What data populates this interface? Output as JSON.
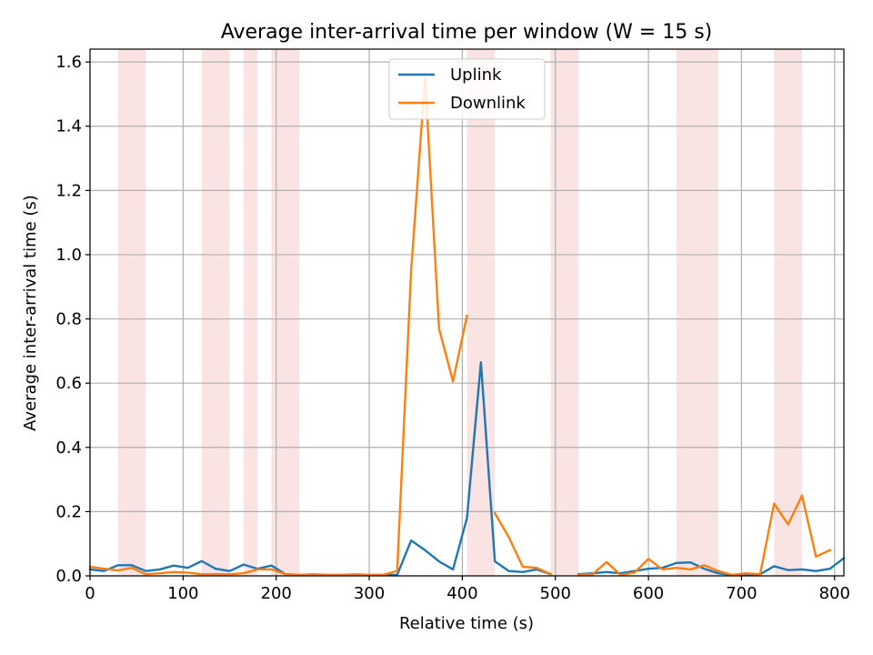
{
  "chart_data": {
    "type": "line",
    "title": "Average inter-arrival time per window (W = 15 s)",
    "xlabel": "Relative time (s)",
    "ylabel": "Average inter-arrival time (s)",
    "xlim": [
      0,
      810
    ],
    "ylim": [
      0,
      1.64
    ],
    "xticks": [
      0,
      100,
      200,
      300,
      400,
      500,
      600,
      700,
      800
    ],
    "yticks": [
      0.0,
      0.2,
      0.4,
      0.6,
      0.8,
      1.0,
      1.2,
      1.4,
      1.6
    ],
    "xtick_labels": [
      "0",
      "100",
      "200",
      "300",
      "400",
      "500",
      "600",
      "700",
      "800"
    ],
    "ytick_labels": [
      "0.0",
      "0.2",
      "0.4",
      "0.6",
      "0.8",
      "1.0",
      "1.2",
      "1.4",
      "1.6"
    ],
    "grid": true,
    "legend_position": "top-center",
    "shaded_spans": [
      [
        30,
        60
      ],
      [
        120,
        150
      ],
      [
        165,
        180
      ],
      [
        195,
        225
      ],
      [
        405,
        435
      ],
      [
        495,
        525
      ],
      [
        630,
        675
      ],
      [
        735,
        765
      ]
    ],
    "shade_color": "#f6d0d0",
    "series": [
      {
        "name": "Uplink",
        "color": "#1f77b4",
        "segments": [
          [
            [
              0,
              0.02
            ],
            [
              15,
              0.015
            ],
            [
              30,
              0.033
            ],
            [
              45,
              0.033
            ],
            [
              60,
              0.015
            ],
            [
              75,
              0.02
            ],
            [
              90,
              0.032
            ],
            [
              105,
              0.025
            ],
            [
              120,
              0.046
            ],
            [
              135,
              0.022
            ],
            [
              150,
              0.015
            ],
            [
              165,
              0.035
            ],
            [
              180,
              0.022
            ],
            [
              195,
              0.032
            ],
            [
              210,
              0.005
            ],
            [
              225,
              0.003
            ],
            [
              240,
              0.003
            ],
            [
              255,
              0.003
            ],
            [
              270,
              0.003
            ],
            [
              285,
              0.003
            ],
            [
              300,
              0.003
            ],
            [
              315,
              0.003
            ],
            [
              330,
              0.003
            ],
            [
              345,
              0.11
            ],
            [
              360,
              0.08
            ],
            [
              375,
              0.045
            ],
            [
              390,
              0.02
            ],
            [
              405,
              0.18
            ],
            [
              420,
              0.665
            ],
            [
              435,
              0.045
            ],
            [
              450,
              0.015
            ],
            [
              465,
              0.012
            ],
            [
              480,
              0.02
            ],
            [
              495,
              0.005
            ]
          ],
          [
            [
              525,
              0.005
            ],
            [
              540,
              0.008
            ],
            [
              555,
              0.012
            ],
            [
              570,
              0.008
            ],
            [
              585,
              0.015
            ],
            [
              600,
              0.022
            ],
            [
              615,
              0.025
            ],
            [
              630,
              0.04
            ],
            [
              645,
              0.042
            ],
            [
              660,
              0.022
            ],
            [
              675,
              0.008
            ],
            [
              690,
              0.003
            ],
            [
              705,
              0.003
            ],
            [
              720,
              0.005
            ],
            [
              735,
              0.03
            ],
            [
              750,
              0.018
            ],
            [
              765,
              0.02
            ],
            [
              780,
              0.015
            ],
            [
              795,
              0.022
            ],
            [
              810,
              0.055
            ]
          ]
        ]
      },
      {
        "name": "Downlink",
        "color": "#ff7f0e",
        "segments": [
          [
            [
              0,
              0.028
            ],
            [
              15,
              0.022
            ],
            [
              30,
              0.017
            ],
            [
              45,
              0.025
            ],
            [
              60,
              0.005
            ],
            [
              75,
              0.008
            ],
            [
              90,
              0.012
            ],
            [
              105,
              0.01
            ],
            [
              120,
              0.005
            ],
            [
              135,
              0.005
            ],
            [
              150,
              0.005
            ],
            [
              165,
              0.008
            ],
            [
              180,
              0.02
            ],
            [
              195,
              0.02
            ],
            [
              210,
              0.005
            ],
            [
              225,
              0.003
            ],
            [
              240,
              0.005
            ],
            [
              255,
              0.003
            ],
            [
              270,
              0.003
            ],
            [
              285,
              0.005
            ],
            [
              300,
              0.003
            ],
            [
              315,
              0.003
            ],
            [
              330,
              0.015
            ],
            [
              345,
              0.95
            ],
            [
              360,
              1.55
            ],
            [
              375,
              0.77
            ],
            [
              390,
              0.605
            ],
            [
              405,
              0.81
            ]
          ],
          [
            [
              435,
              0.195
            ],
            [
              450,
              0.12
            ],
            [
              465,
              0.028
            ],
            [
              480,
              0.025
            ],
            [
              495,
              0.005
            ]
          ],
          [
            [
              525,
              0.003
            ],
            [
              540,
              0.005
            ],
            [
              555,
              0.043
            ],
            [
              570,
              0.003
            ],
            [
              585,
              0.01
            ],
            [
              600,
              0.053
            ],
            [
              615,
              0.02
            ],
            [
              630,
              0.025
            ],
            [
              645,
              0.02
            ],
            [
              660,
              0.033
            ],
            [
              675,
              0.015
            ],
            [
              690,
              0.003
            ],
            [
              705,
              0.008
            ],
            [
              720,
              0.005
            ],
            [
              735,
              0.225
            ],
            [
              750,
              0.16
            ],
            [
              765,
              0.25
            ],
            [
              780,
              0.06
            ],
            [
              795,
              0.08
            ]
          ]
        ]
      }
    ]
  }
}
